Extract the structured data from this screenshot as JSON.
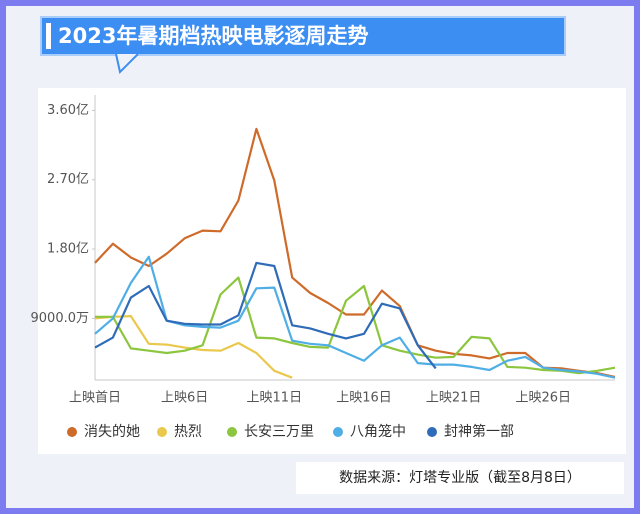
{
  "chart_data": {
    "type": "line",
    "title": "2023年暑期档热映电影逐周走势",
    "source": "数据来源：灯塔专业版（截至8月8日）",
    "categories": [
      "上映首日",
      null,
      null,
      null,
      null,
      "上映6日",
      null,
      null,
      null,
      null,
      "上映11日",
      null,
      null,
      null,
      null,
      "上映16日",
      null,
      null,
      null,
      null,
      "上映21日",
      null,
      null,
      null,
      null,
      "上映26日",
      null,
      null,
      null,
      null
    ],
    "ylim": [
      0.1,
      3.8
    ],
    "yticks": [
      {
        "value": 0.9,
        "label": "9000.0万"
      },
      {
        "value": 1.8,
        "label": "1.80亿"
      },
      {
        "value": 2.7,
        "label": "2.70亿"
      },
      {
        "value": 3.6,
        "label": "3.60亿"
      }
    ],
    "grid": false,
    "series": [
      {
        "name": "消失的她",
        "color": "#cf6b2a",
        "values": [
          1.62,
          1.87,
          1.69,
          1.58,
          1.74,
          1.94,
          2.04,
          2.03,
          2.43,
          3.36,
          2.69,
          1.43,
          1.23,
          1.1,
          0.95,
          0.95,
          1.26,
          1.06,
          0.55,
          0.48,
          0.44,
          0.42,
          0.38,
          0.45,
          0.45,
          0.26,
          0.25,
          0.22,
          0.19,
          0.14
        ]
      },
      {
        "name": "热烈",
        "color": "#e9c84c",
        "values": [
          0.9,
          0.92,
          0.93,
          0.57,
          0.56,
          0.52,
          0.49,
          0.48,
          0.58,
          0.45,
          0.22,
          0.13,
          null,
          null,
          null,
          null,
          null,
          null,
          null,
          null,
          null,
          null,
          null,
          null,
          null,
          null,
          null,
          null,
          null,
          null
        ]
      },
      {
        "name": "长安三万里",
        "color": "#8cc63e",
        "values": [
          0.92,
          0.92,
          0.51,
          0.48,
          0.45,
          0.48,
          0.55,
          1.21,
          1.43,
          0.65,
          0.64,
          0.58,
          0.53,
          0.52,
          1.13,
          1.32,
          0.55,
          0.48,
          0.43,
          0.39,
          0.4,
          0.66,
          0.64,
          0.27,
          0.26,
          0.23,
          0.22,
          0.19,
          0.22,
          0.26
        ]
      },
      {
        "name": "八角笼中",
        "color": "#4faee6",
        "values": [
          0.7,
          0.9,
          1.36,
          1.7,
          0.87,
          0.81,
          0.79,
          0.78,
          0.87,
          1.29,
          1.3,
          0.61,
          0.57,
          0.55,
          0.45,
          0.35,
          0.55,
          0.65,
          0.32,
          0.3,
          0.3,
          0.27,
          0.23,
          0.35,
          0.4,
          0.26,
          0.23,
          0.21,
          0.18,
          0.13
        ]
      },
      {
        "name": "封神第一部",
        "color": "#2f6cb8",
        "values": [
          0.52,
          0.65,
          1.17,
          1.32,
          0.87,
          0.83,
          0.82,
          0.82,
          0.94,
          1.62,
          1.58,
          0.81,
          0.77,
          0.7,
          0.64,
          0.7,
          1.09,
          1.03,
          0.55,
          0.25,
          null,
          null,
          null,
          null,
          null,
          null,
          null,
          null,
          null,
          null
        ]
      }
    ]
  }
}
